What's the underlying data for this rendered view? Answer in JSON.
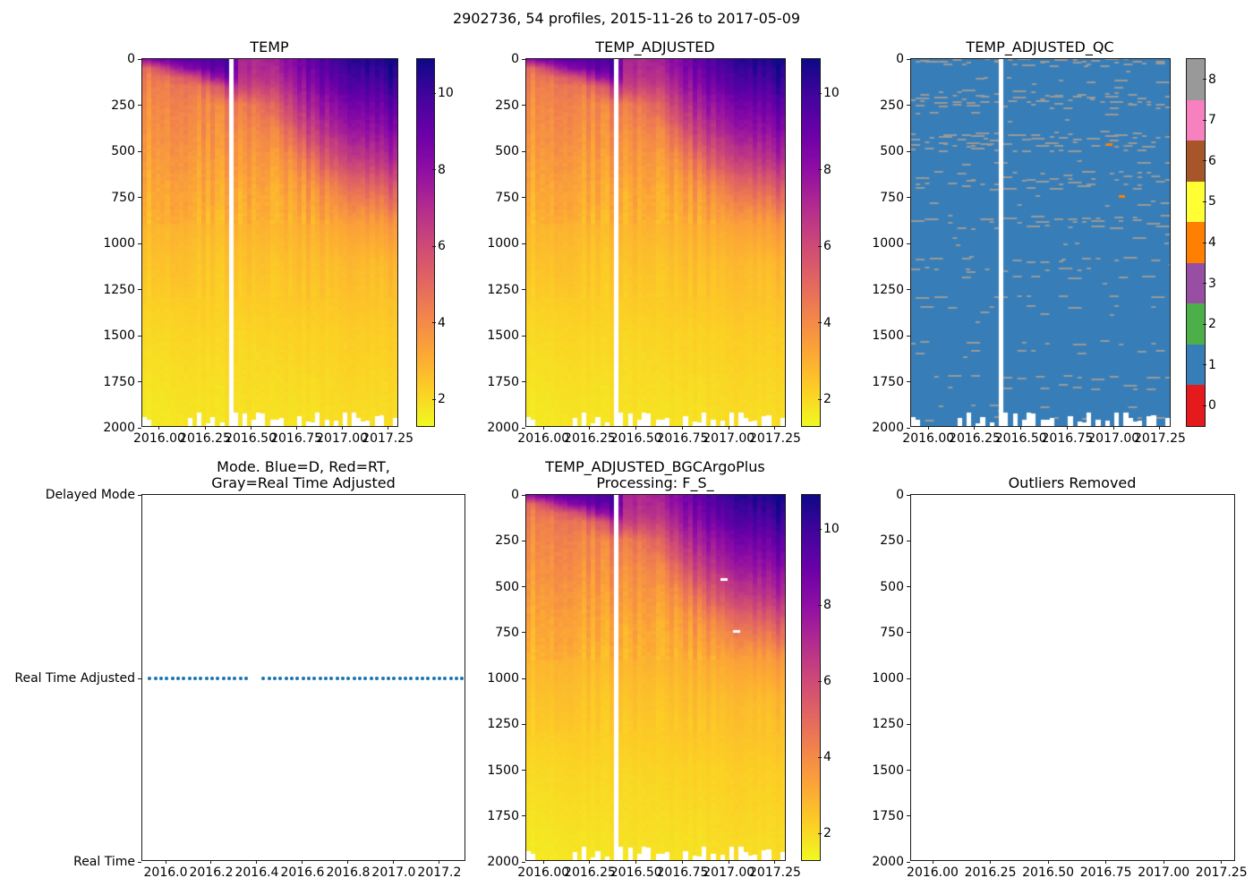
{
  "figure_title": "2902736, 54 profiles, 2015-11-26 to 2017-05-09",
  "colors": {
    "background": "#ffffff",
    "axis_line": "#1a1a1a",
    "text": "#000000",
    "qc_fill_blue": "#377eb8",
    "qc_dash_gray": "#999999",
    "qc_outlier_orange": "#ff7f00",
    "mode_dot_blue": "#1f77b4",
    "plasma_reversed_anchors_top_to_bottom": [
      "#0d0887",
      "#41049d",
      "#6a00a8",
      "#8f0da4",
      "#b12a90",
      "#cc4778",
      "#e16462",
      "#f2844b",
      "#fca636",
      "#fcce25",
      "#f0f921"
    ],
    "qc_category_colors_0_to_8": [
      "#e41a1c",
      "#377eb8",
      "#4daf4a",
      "#984ea3",
      "#ff7f00",
      "#ffff33",
      "#a65628",
      "#f781bf",
      "#999999"
    ]
  },
  "chart_data": [
    {
      "id": "temp",
      "type": "heatmap",
      "title": "TEMP",
      "x_range": [
        2015.907,
        2017.313
      ],
      "depth_range": [
        0,
        2000
      ],
      "y_inverted": true,
      "x_tick_values": [
        2016.0,
        2016.25,
        2016.5,
        2016.75,
        2017.0,
        2017.25
      ],
      "x_tick_labels": [
        "2016.00",
        "2016.25",
        "2016.50",
        "2016.75",
        "2017.00",
        "2017.25"
      ],
      "y_tick_values": [
        0,
        250,
        500,
        750,
        1000,
        1250,
        1500,
        1750,
        2000
      ],
      "y_tick_labels": [
        "0",
        "250",
        "500",
        "750",
        "1000",
        "1250",
        "1500",
        "1750",
        "2000"
      ],
      "colormap": "plasma_reversed",
      "vmin": 1.3,
      "vmax": 10.9,
      "colorbar_tick_values": [
        2,
        4,
        6,
        8,
        10
      ],
      "colorbar_tick_labels": [
        "2",
        "4",
        "6",
        "8",
        "10"
      ],
      "n_profile_columns": 56,
      "missing_profile_gap_time": 2016.4,
      "gap_column": 19,
      "grid": {
        "times": [
          2015.91,
          2016.05,
          2016.18,
          2016.3,
          2016.4,
          2016.45,
          2016.55,
          2016.65,
          2016.75,
          2016.85,
          2016.95,
          2017.05,
          2017.15,
          2017.31
        ],
        "depths_m": [
          0,
          50,
          100,
          150,
          250,
          400,
          550,
          700,
          900,
          1100,
          1500,
          2000
        ],
        "temps_c": [
          [
            8.2,
            4.6,
            4.3,
            4.1,
            3.9,
            3.6,
            3.4,
            3.1,
            2.8,
            2.5,
            2.0,
            1.6
          ],
          [
            9.0,
            6.5,
            4.6,
            4.2,
            3.9,
            3.7,
            3.4,
            3.1,
            2.8,
            2.5,
            2.0,
            1.6
          ],
          [
            9.4,
            8.3,
            5.5,
            4.4,
            4.0,
            3.7,
            3.4,
            3.1,
            2.8,
            2.5,
            2.1,
            1.7
          ],
          [
            9.7,
            9.2,
            7.8,
            5.2,
            4.1,
            3.8,
            3.5,
            3.2,
            2.8,
            2.5,
            2.1,
            1.7
          ],
          [
            9.9,
            9.5,
            8.9,
            7.2,
            4.4,
            3.9,
            3.5,
            3.2,
            2.9,
            2.5,
            2.1,
            1.8
          ],
          [
            7.3,
            7.1,
            6.9,
            6.4,
            4.4,
            3.9,
            3.6,
            3.2,
            2.9,
            2.6,
            2.1,
            1.8
          ],
          [
            7.1,
            7.0,
            6.8,
            6.2,
            4.7,
            4.0,
            3.6,
            3.3,
            2.9,
            2.6,
            2.1,
            1.8
          ],
          [
            7.7,
            7.5,
            7.2,
            6.7,
            5.6,
            4.3,
            3.7,
            3.3,
            3.0,
            2.6,
            2.2,
            1.8
          ],
          [
            8.5,
            8.3,
            8.0,
            7.6,
            6.8,
            5.4,
            4.1,
            3.5,
            3.0,
            2.7,
            2.2,
            1.8
          ],
          [
            9.2,
            9.0,
            8.7,
            8.3,
            7.5,
            6.4,
            4.9,
            3.8,
            3.1,
            2.7,
            2.2,
            1.8
          ],
          [
            9.8,
            9.6,
            9.3,
            8.9,
            8.1,
            7.0,
            5.7,
            4.2,
            3.2,
            2.7,
            2.2,
            1.9
          ],
          [
            10.3,
            10.0,
            9.7,
            9.4,
            8.6,
            7.5,
            6.2,
            4.7,
            3.3,
            2.8,
            2.3,
            1.9
          ],
          [
            10.6,
            10.4,
            10.1,
            9.7,
            8.9,
            7.9,
            6.7,
            5.1,
            3.5,
            2.8,
            2.3,
            1.9
          ],
          [
            10.8,
            10.6,
            10.4,
            10.1,
            9.4,
            8.3,
            7.2,
            5.6,
            3.7,
            2.9,
            2.3,
            1.9
          ]
        ]
      }
    },
    {
      "id": "temp_adjusted",
      "type": "heatmap",
      "title": "TEMP_ADJUSTED",
      "same_data_as": "temp",
      "x_tick_labels": [
        "2016.00",
        "2016.25",
        "2016.50",
        "2016.75",
        "2017.00",
        "2017.25"
      ],
      "y_tick_labels": [
        "0",
        "250",
        "500",
        "750",
        "1000",
        "1250",
        "1500",
        "1750",
        "2000"
      ],
      "colorbar_tick_labels": [
        "2",
        "4",
        "6",
        "8",
        "10"
      ]
    },
    {
      "id": "temp_adjusted_qc",
      "type": "heatmap_categorical",
      "title": "TEMP_ADJUSTED_QC",
      "x_range": [
        2015.907,
        2017.313
      ],
      "depth_range": [
        0,
        2000
      ],
      "x_tick_labels": [
        "2016.00",
        "2016.25",
        "2016.50",
        "2016.75",
        "2017.00",
        "2017.25"
      ],
      "y_tick_labels": [
        "0",
        "250",
        "500",
        "750",
        "1000",
        "1250",
        "1500",
        "1750",
        "2000"
      ],
      "dominant_qc_value": 1,
      "dash_qc_value": 8,
      "outlier_qc_value": 4,
      "colorbar_tick_values": [
        0,
        1,
        2,
        3,
        4,
        5,
        6,
        7,
        8
      ],
      "colorbar_tick_labels": [
        "0",
        "1",
        "2",
        "3",
        "4",
        "5",
        "6",
        "7",
        "8"
      ],
      "dash_bands_depth_density": [
        [
          6,
          0.55
        ],
        [
          22,
          0.45
        ],
        [
          110,
          0.06
        ],
        [
          160,
          0.05
        ],
        [
          185,
          0.4
        ],
        [
          205,
          0.5
        ],
        [
          230,
          0.45
        ],
        [
          255,
          0.3
        ],
        [
          295,
          0.12
        ],
        [
          400,
          0.45
        ],
        [
          420,
          0.5
        ],
        [
          445,
          0.4
        ],
        [
          465,
          0.35
        ],
        [
          490,
          0.28
        ],
        [
          560,
          0.06
        ],
        [
          620,
          0.32
        ],
        [
          645,
          0.38
        ],
        [
          670,
          0.3
        ],
        [
          695,
          0.18
        ],
        [
          790,
          0.05
        ],
        [
          860,
          0.38
        ],
        [
          885,
          0.32
        ],
        [
          910,
          0.28
        ],
        [
          960,
          0.08
        ],
        [
          1090,
          0.32
        ],
        [
          1145,
          0.18
        ],
        [
          1190,
          0.22
        ],
        [
          1295,
          0.28
        ],
        [
          1345,
          0.22
        ],
        [
          1385,
          0.08
        ],
        [
          1540,
          0.28
        ],
        [
          1590,
          0.22
        ],
        [
          1730,
          0.32
        ],
        [
          1785,
          0.18
        ],
        [
          1880,
          0.04
        ],
        [
          1955,
          0.12
        ]
      ],
      "qc4_outliers": [
        {
          "time": 2016.98,
          "depth_m": 462
        },
        {
          "time": 2017.05,
          "depth_m": 745
        }
      ]
    },
    {
      "id": "mode",
      "type": "scatter",
      "title": "Mode. Blue=D, Red=RT,\nGray=Real Time Adjusted",
      "x_range": [
        2015.898,
        2017.318
      ],
      "x_tick_values": [
        2016.0,
        2016.2,
        2016.4,
        2016.6,
        2016.8,
        2017.0,
        2017.2
      ],
      "x_tick_labels": [
        "2016.0",
        "2016.2",
        "2016.4",
        "2016.6",
        "2016.8",
        "2017.0",
        "2017.2"
      ],
      "y_categories": [
        "Delayed Mode",
        "Real Time Adjusted",
        "Real Time"
      ],
      "points_y_category": "Real Time Adjusted",
      "n_points": 54,
      "t_first": 2015.93,
      "t_last": 2017.3,
      "n_slots": 56,
      "gap_skip_indices": [
        18,
        19
      ]
    },
    {
      "id": "temp_adjusted_bgc",
      "type": "heatmap",
      "title": "TEMP_ADJUSTED_BGCArgoPlus\nProcessing: F_S_",
      "same_data_as": "temp",
      "x_tick_labels": [
        "2016.00",
        "2016.25",
        "2016.50",
        "2016.75",
        "2017.00",
        "2017.25"
      ],
      "y_tick_labels": [
        "0",
        "250",
        "500",
        "750",
        "1000",
        "1250",
        "1500",
        "1750",
        "2000"
      ],
      "colorbar_tick_labels": [
        "2",
        "4",
        "6",
        "8",
        "10"
      ],
      "removed_outliers_white": [
        {
          "time": 2016.98,
          "depth_m": 462
        },
        {
          "time": 2017.05,
          "depth_m": 745
        }
      ]
    },
    {
      "id": "outliers_removed",
      "type": "empty",
      "title": "Outliers Removed",
      "x_range": [
        2015.907,
        2017.313
      ],
      "depth_range": [
        0,
        2000
      ],
      "x_tick_labels": [
        "2016.00",
        "2016.25",
        "2016.50",
        "2016.75",
        "2017.00",
        "2017.25"
      ],
      "y_tick_labels": [
        "0",
        "250",
        "500",
        "750",
        "1000",
        "1250",
        "1500",
        "1750",
        "2000"
      ]
    }
  ]
}
